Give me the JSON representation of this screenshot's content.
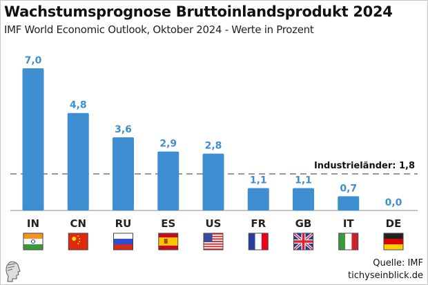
{
  "chart_data": {
    "type": "bar",
    "title": "Wachstumsprognose Bruttoinlandsprodukt 2024",
    "subtitle": "IMF World Economic Outlook, Oktober 2024 - Werte in Prozent",
    "categories": [
      "IN",
      "CN",
      "RU",
      "ES",
      "US",
      "FR",
      "GB",
      "IT",
      "DE"
    ],
    "values": [
      7.0,
      4.8,
      3.6,
      2.9,
      2.8,
      1.1,
      1.1,
      0.7,
      0.0
    ],
    "data_labels": [
      "7,0",
      "4,8",
      "3,6",
      "2,9",
      "2,8",
      "1,1",
      "1,1",
      "0,7",
      "0,0"
    ],
    "flags": [
      "india-flag",
      "china-flag",
      "russia-flag",
      "spain-flag",
      "usa-flag",
      "france-flag",
      "uk-flag",
      "italy-flag",
      "germany-flag"
    ],
    "reference_line": {
      "label": "Industrieländer: 1,8",
      "value": 1.8,
      "style": "dashed",
      "color": "#999999"
    },
    "ylim": [
      0,
      7.0
    ],
    "grid": false,
    "bar_color": "#3d8fd1",
    "label_color": "#3d8fd1"
  },
  "footer": {
    "source": "Quelle: IMF",
    "site": "tichyseinblick.de"
  }
}
